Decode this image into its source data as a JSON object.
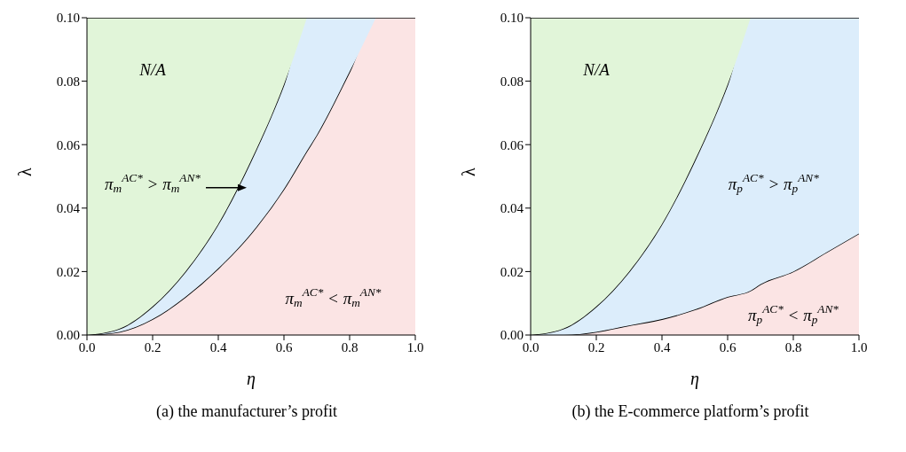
{
  "chart_data": [
    {
      "type": "area",
      "stacked": true,
      "xlabel": "η",
      "ylabel": "λ",
      "x": [
        0,
        0.1,
        0.2,
        0.3,
        0.4,
        0.5,
        0.6,
        0.67,
        0.7,
        0.8,
        0.88,
        0.9,
        1.0
      ],
      "xlim": [
        0,
        1
      ],
      "ylim": [
        0,
        0.1
      ],
      "xticks": [
        {
          "value": 0,
          "label": "0.0"
        },
        {
          "value": 0.2,
          "label": "0.2"
        },
        {
          "value": 0.4,
          "label": "0.4"
        },
        {
          "value": 0.6,
          "label": "0.6"
        },
        {
          "value": 0.8,
          "label": "0.8"
        },
        {
          "value": 1,
          "label": "1.0"
        }
      ],
      "yticks": [
        {
          "value": 0,
          "label": "0.00"
        },
        {
          "value": 0.02,
          "label": "0.02"
        },
        {
          "value": 0.04,
          "label": "0.04"
        },
        {
          "value": 0.06,
          "label": "0.06"
        },
        {
          "value": 0.08,
          "label": "0.08"
        },
        {
          "value": 0.1,
          "label": "0.10"
        }
      ],
      "series": [
        {
          "color": "#fbe4e4",
          "values": [
            0,
            0.001,
            0.005,
            0.012,
            0.021,
            0.032,
            0.046,
            0.058,
            0.063,
            0.083,
            0.1,
            0.1,
            0.1
          ]
        },
        {
          "color": "#dcedfb",
          "values": [
            0,
            0.001,
            0.004,
            0.008,
            0.014,
            0.023,
            0.033,
            0.042,
            0.037,
            0.017,
            0,
            null,
            null
          ]
        },
        {
          "color": "#e1f5d9",
          "values": [
            0.1,
            0.098,
            0.091,
            0.08,
            0.065,
            0.045,
            0.021,
            0,
            null,
            null,
            null,
            null,
            null
          ]
        }
      ],
      "annotations": [
        "N/A",
        "π$_{m}$$^{AC*}$ > π$_{m}$$^{AN*}$",
        "π$_{m}$$^{AC*}$ < π$_{m}$$^{AN*}$",
        "(a) the manufacturer’s profit"
      ]
    },
    {
      "type": "area",
      "stacked": true,
      "xlabel": "η",
      "ylabel": "λ",
      "x": [
        0,
        0.1,
        0.2,
        0.3,
        0.4,
        0.5,
        0.6,
        0.67,
        0.7,
        0.8,
        0.9,
        1.0
      ],
      "xlim": [
        0,
        1
      ],
      "ylim": [
        0,
        0.1
      ],
      "xticks": [
        {
          "value": 0,
          "label": "0.0"
        },
        {
          "value": 0.2,
          "label": "0.2"
        },
        {
          "value": 0.4,
          "label": "0.4"
        },
        {
          "value": 0.6,
          "label": "0.6"
        },
        {
          "value": 0.8,
          "label": "0.8"
        },
        {
          "value": 1,
          "label": "1.0"
        }
      ],
      "yticks": [
        {
          "value": 0,
          "label": "0.00"
        },
        {
          "value": 0.02,
          "label": "0.02"
        },
        {
          "value": 0.04,
          "label": "0.04"
        },
        {
          "value": 0.06,
          "label": "0.06"
        },
        {
          "value": 0.08,
          "label": "0.08"
        },
        {
          "value": 0.1,
          "label": "0.10"
        }
      ],
      "series": [
        {
          "color": "#fbe4e4",
          "values": [
            0,
            0,
            0.001,
            0.003,
            0.005,
            0.008,
            0.012,
            0.014,
            0.016,
            0.02,
            0.026,
            0.032
          ]
        },
        {
          "color": "#dcedfb",
          "values": [
            0,
            0.002,
            0.008,
            0.017,
            0.03,
            0.047,
            0.067,
            0.086,
            0.084,
            0.08,
            0.074,
            0.068
          ]
        },
        {
          "color": "#e1f5d9",
          "values": [
            0.1,
            0.098,
            0.091,
            0.08,
            0.065,
            0.045,
            0.021,
            0,
            null,
            null,
            null,
            null
          ]
        }
      ],
      "annotations": [
        "N/A",
        "π$_{p}$$^{AC*}$ > π$_{p}$$^{AN*}$",
        "π$_{p}$$^{AC*}$ < π$_{p}$$^{AN*}$",
        "(b) the E-commerce platform’s profit"
      ]
    }
  ]
}
